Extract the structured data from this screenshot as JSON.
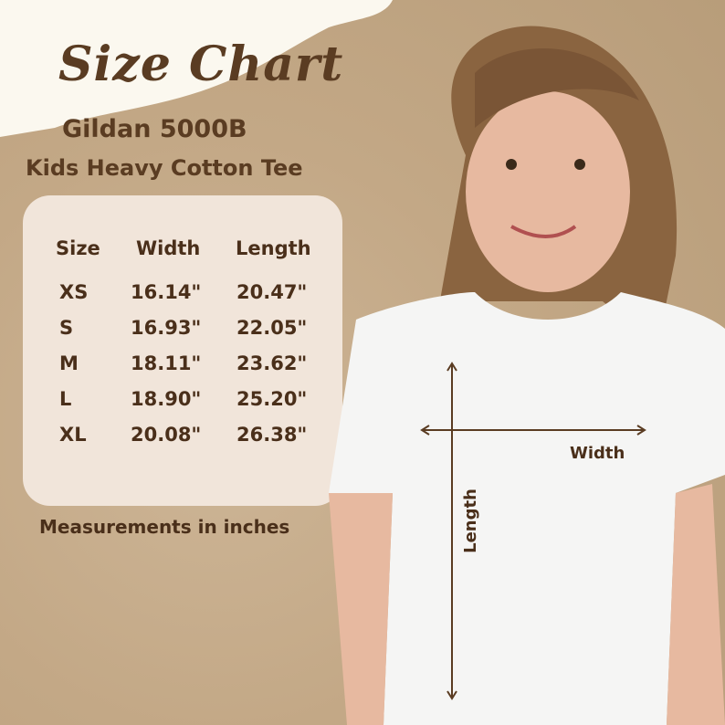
{
  "title": "Size Chart",
  "product": "Gildan 5000B",
  "description": "Kids Heavy Cotton Tee",
  "table": {
    "headers": [
      "Size",
      "Width",
      "Length"
    ],
    "rows": [
      [
        "XS",
        "16.14\"",
        "20.47\""
      ],
      [
        "S",
        "16.93\"",
        "22.05\""
      ],
      [
        "M",
        "18.11\"",
        "23.62\""
      ],
      [
        "L",
        "18.90\"",
        "25.20\""
      ],
      [
        "XL",
        "20.08\"",
        "26.38\""
      ]
    ]
  },
  "footnote": "Measurements in inches",
  "diagram": {
    "width_label": "Width",
    "length_label": "Length"
  },
  "colors": {
    "text": "#5a3c22",
    "card": "#f1e5da",
    "background": "#c3a886"
  }
}
